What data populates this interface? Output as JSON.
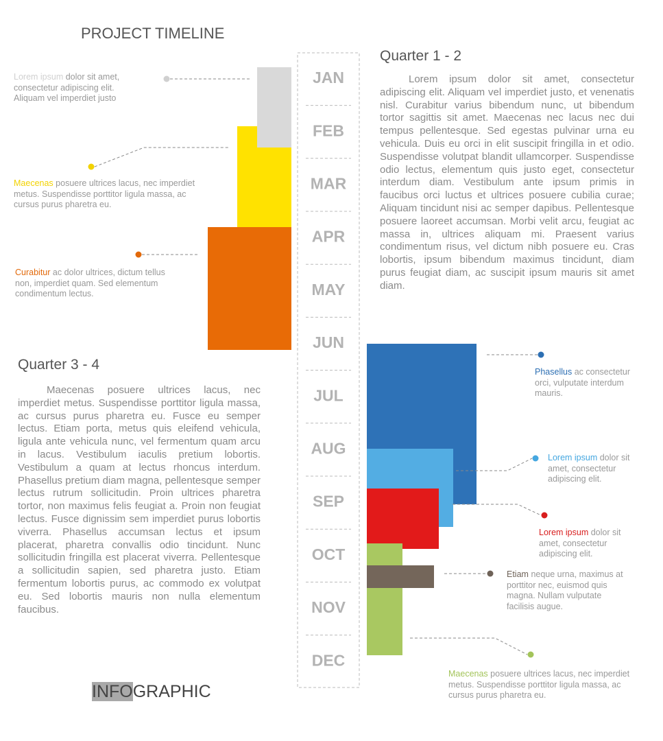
{
  "header": {
    "title": "PROJECT TIMELINE"
  },
  "months": [
    "JAN",
    "FEB",
    "MAR",
    "APR",
    "MAY",
    "JUN",
    "JUL",
    "AUG",
    "SEP",
    "OCT",
    "NOV",
    "DEC"
  ],
  "sections": [
    {
      "heading": "Quarter  1 - 2",
      "text": "Lorem ipsum dolor sit amet, consectetur adipiscing elit. Aliquam vel imperdiet justo, et venenatis nisl. Curabitur varius bibendum nunc, ut bibendum tortor sagittis sit amet. Maecenas nec lacus nec dui tempus pellentesque. Sed egestas pulvinar urna eu vehicula. Duis eu orci in elit suscipit fringilla in et odio. Suspendisse volutpat blandit ullamcorper. Suspendisse odio lectus, elementum quis justo eget, consectetur interdum diam. Vestibulum ante ipsum primis in faucibus orci luctus et ultrices posuere cubilia curae; Aliquam tincidunt nisi ac semper dapibus. Pellentesque posuere laoreet accumsan. Morbi velit arcu, feugiat ac massa in, ultrices aliquam mi. Praesent varius condimentum risus, vel dictum nibh posuere eu. Cras lobortis, ipsum bibendum maximus tincidunt, diam purus feugiat diam, ac suscipit ipsum mauris sit amet diam."
    },
    {
      "heading": "Quarter  3 - 4",
      "text": "Maecenas posuere ultrices lacus, nec imperdiet metus. Suspendisse porttitor ligula massa, ac cursus purus pharetra eu. Fusce eu semper lectus. Etiam porta, metus quis eleifend vehicula, ligula ante vehicula nunc, vel fermentum quam arcu in lacus. Vestibulum iaculis pretium lobortis. Vestibulum a quam at lectus rhoncus interdum. Phasellus pretium diam magna, pellentesque semper lectus rutrum sollicitudin. Proin ultrices pharetra tortor, non maximus felis feugiat a. Proin non feugiat lectus. Fusce dignissim sem imperdiet purus lobortis viverra. Phasellus accumsan lectus et ipsum placerat, pharetra convallis odio tincidunt. Nunc sollicitudin fringilla est placerat viverra. Pellentesque a sollicitudin sapien, sed pharetra justo. Etiam fermentum lobortis purus, ac commodo ex volutpat eu. Sed lobortis mauris non nulla elementum faucibus."
    }
  ],
  "callouts": [
    {
      "lead": "Lorem ipsum",
      "text": "dolor sit amet, consectetur adipiscing elit. Aliquam vel imperdiet justo",
      "color": "#d0d0d0"
    },
    {
      "lead": "Maecenas",
      "text": "posuere ultrices lacus, nec imperdiet metus. Suspendisse porttitor ligula massa, ac cursus purus pharetra eu.",
      "color": "#f2d200"
    },
    {
      "lead": "Curabitur",
      "text": "ac dolor ultrices, dictum tellus non, imperdiet quam. Sed elementum condimentum lectus.",
      "color": "#e2690a"
    },
    {
      "lead": "Phasellus",
      "text": "ac consectetur orci, vulputate interdum mauris.",
      "color": "#2d6fb3"
    },
    {
      "lead": "Lorem ipsum",
      "text": "dolor sit amet, consectetur adipiscing elit.",
      "color": "#45a7e0"
    },
    {
      "lead": "Lorem ipsum",
      "text": "dolor sit amet, consectetur adipiscing elit.",
      "color": "#d81e1e"
    },
    {
      "lead": "Etiam",
      "text": "neque urna, maximus at porttitor nec, euismod quis magna. Nullam vulputate facilisis augue.",
      "color": "#6e6258"
    },
    {
      "lead": "Maecenas",
      "text": "posuere ultrices lacus, nec imperdiet metus. Suspendisse porttitor ligula massa, ac cursus purus pharetra eu.",
      "color": "#a3c45a"
    }
  ],
  "footer": {
    "highlight": "INFO",
    "rest": "GRAPHIC"
  }
}
